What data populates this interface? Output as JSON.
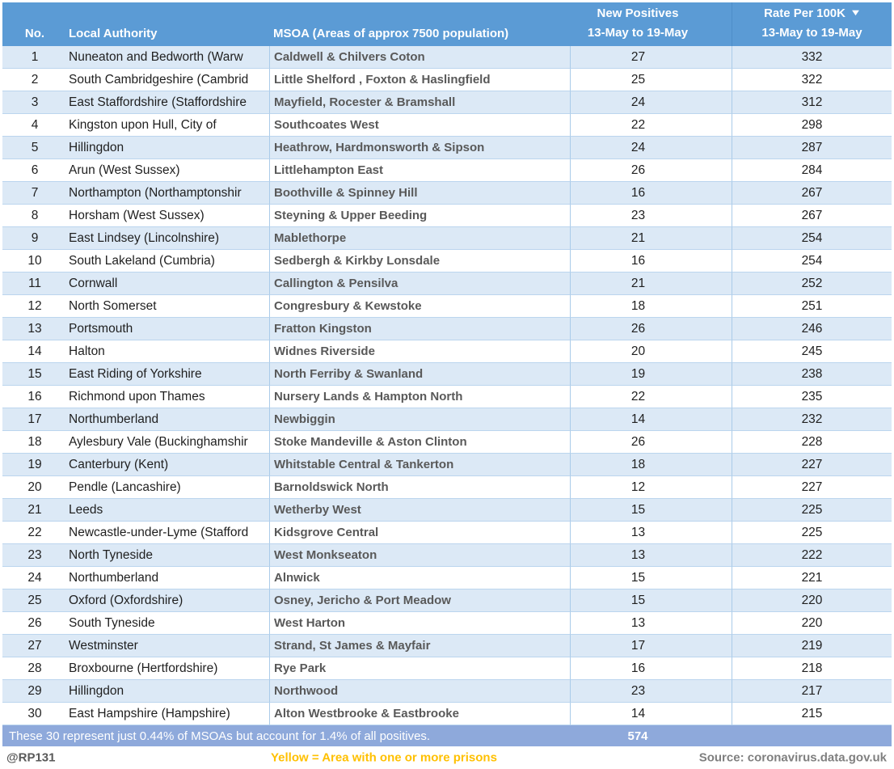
{
  "colors": {
    "header_bg": "#5B9BD5",
    "stripe": "#DCE9F6",
    "summary_bg": "#8EA9DB",
    "legend_yellow": "#FFC000",
    "msoa_text": "#595959",
    "source_gray": "#7F7F7F"
  },
  "chart_data": {
    "type": "table",
    "legend_position": "bottom",
    "columns": [
      {
        "key": "no",
        "label": "No."
      },
      {
        "key": "local_authority",
        "label": "Local Authority"
      },
      {
        "key": "msoa",
        "label": "MSOA (Areas of approx 7500 population)"
      },
      {
        "key": "new_positives",
        "label_line1": "New Positives",
        "label_line2": "13-May to 19-May"
      },
      {
        "key": "rate",
        "label_line1": "Rate Per 100K",
        "label_line2": "13-May to 19-May",
        "sort_icon": "▼",
        "sorted": "descending"
      }
    ],
    "rows": [
      {
        "no": 1,
        "local_authority": "Nuneaton and Bedworth (Warw",
        "msoa": "Caldwell & Chilvers Coton",
        "new_positives": 27,
        "rate": 332
      },
      {
        "no": 2,
        "local_authority": "South Cambridgeshire (Cambrid",
        "msoa": "Little Shelford , Foxton & Haslingfield",
        "new_positives": 25,
        "rate": 322
      },
      {
        "no": 3,
        "local_authority": "East Staffordshire (Staffordshire",
        "msoa": "Mayfield, Rocester & Bramshall",
        "new_positives": 24,
        "rate": 312
      },
      {
        "no": 4,
        "local_authority": "Kingston upon Hull, City of",
        "msoa": "Southcoates West",
        "new_positives": 22,
        "rate": 298
      },
      {
        "no": 5,
        "local_authority": "Hillingdon",
        "msoa": "Heathrow, Hardmonsworth & Sipson",
        "new_positives": 24,
        "rate": 287
      },
      {
        "no": 6,
        "local_authority": "Arun (West Sussex)",
        "msoa": "Littlehampton East",
        "new_positives": 26,
        "rate": 284
      },
      {
        "no": 7,
        "local_authority": "Northampton (Northamptonshir",
        "msoa": "Boothville & Spinney Hill",
        "new_positives": 16,
        "rate": 267
      },
      {
        "no": 8,
        "local_authority": "Horsham (West Sussex)",
        "msoa": "Steyning & Upper Beeding",
        "new_positives": 23,
        "rate": 267
      },
      {
        "no": 9,
        "local_authority": "East Lindsey (Lincolnshire)",
        "msoa": "Mablethorpe",
        "new_positives": 21,
        "rate": 254
      },
      {
        "no": 10,
        "local_authority": "South Lakeland (Cumbria)",
        "msoa": "Sedbergh & Kirkby Lonsdale",
        "new_positives": 16,
        "rate": 254
      },
      {
        "no": 11,
        "local_authority": "Cornwall",
        "msoa": "Callington & Pensilva",
        "new_positives": 21,
        "rate": 252
      },
      {
        "no": 12,
        "local_authority": "North Somerset",
        "msoa": "Congresbury & Kewstoke",
        "new_positives": 18,
        "rate": 251
      },
      {
        "no": 13,
        "local_authority": "Portsmouth",
        "msoa": "Fratton Kingston",
        "new_positives": 26,
        "rate": 246
      },
      {
        "no": 14,
        "local_authority": "Halton",
        "msoa": "Widnes Riverside",
        "new_positives": 20,
        "rate": 245
      },
      {
        "no": 15,
        "local_authority": "East Riding of Yorkshire",
        "msoa": "North Ferriby & Swanland",
        "new_positives": 19,
        "rate": 238
      },
      {
        "no": 16,
        "local_authority": "Richmond upon Thames",
        "msoa": "Nursery Lands & Hampton North",
        "new_positives": 22,
        "rate": 235
      },
      {
        "no": 17,
        "local_authority": "Northumberland",
        "msoa": "Newbiggin",
        "new_positives": 14,
        "rate": 232
      },
      {
        "no": 18,
        "local_authority": "Aylesbury Vale (Buckinghamshir",
        "msoa": "Stoke Mandeville & Aston Clinton",
        "new_positives": 26,
        "rate": 228
      },
      {
        "no": 19,
        "local_authority": "Canterbury (Kent)",
        "msoa": "Whitstable Central & Tankerton",
        "new_positives": 18,
        "rate": 227
      },
      {
        "no": 20,
        "local_authority": "Pendle (Lancashire)",
        "msoa": "Barnoldswick North",
        "new_positives": 12,
        "rate": 227
      },
      {
        "no": 21,
        "local_authority": "Leeds",
        "msoa": "Wetherby West",
        "new_positives": 15,
        "rate": 225
      },
      {
        "no": 22,
        "local_authority": "Newcastle-under-Lyme (Stafford",
        "msoa": "Kidsgrove Central",
        "new_positives": 13,
        "rate": 225
      },
      {
        "no": 23,
        "local_authority": "North Tyneside",
        "msoa": "West Monkseaton",
        "new_positives": 13,
        "rate": 222
      },
      {
        "no": 24,
        "local_authority": "Northumberland",
        "msoa": "Alnwick",
        "new_positives": 15,
        "rate": 221
      },
      {
        "no": 25,
        "local_authority": "Oxford (Oxfordshire)",
        "msoa": "Osney, Jericho & Port Meadow",
        "new_positives": 15,
        "rate": 220
      },
      {
        "no": 26,
        "local_authority": "South Tyneside",
        "msoa": "West Harton",
        "new_positives": 13,
        "rate": 220
      },
      {
        "no": 27,
        "local_authority": "Westminster",
        "msoa": "Strand, St James & Mayfair",
        "new_positives": 17,
        "rate": 219
      },
      {
        "no": 28,
        "local_authority": "Broxbourne (Hertfordshire)",
        "msoa": "Rye Park",
        "new_positives": 16,
        "rate": 218
      },
      {
        "no": 29,
        "local_authority": "Hillingdon",
        "msoa": "Northwood",
        "new_positives": 23,
        "rate": 217
      },
      {
        "no": 30,
        "local_authority": "East Hampshire (Hampshire)",
        "msoa": "Alton Westbrooke & Eastbrooke",
        "new_positives": 14,
        "rate": 215
      }
    ]
  },
  "summary": {
    "text": "These 30 represent just 0.44% of MSOAs but account for 1.4% of all positives.",
    "total_positives": "574"
  },
  "footer": {
    "handle": "@RP131",
    "legend": "Yellow = Area with one or more prisons",
    "source": "Source: coronavirus.data.gov.uk"
  }
}
